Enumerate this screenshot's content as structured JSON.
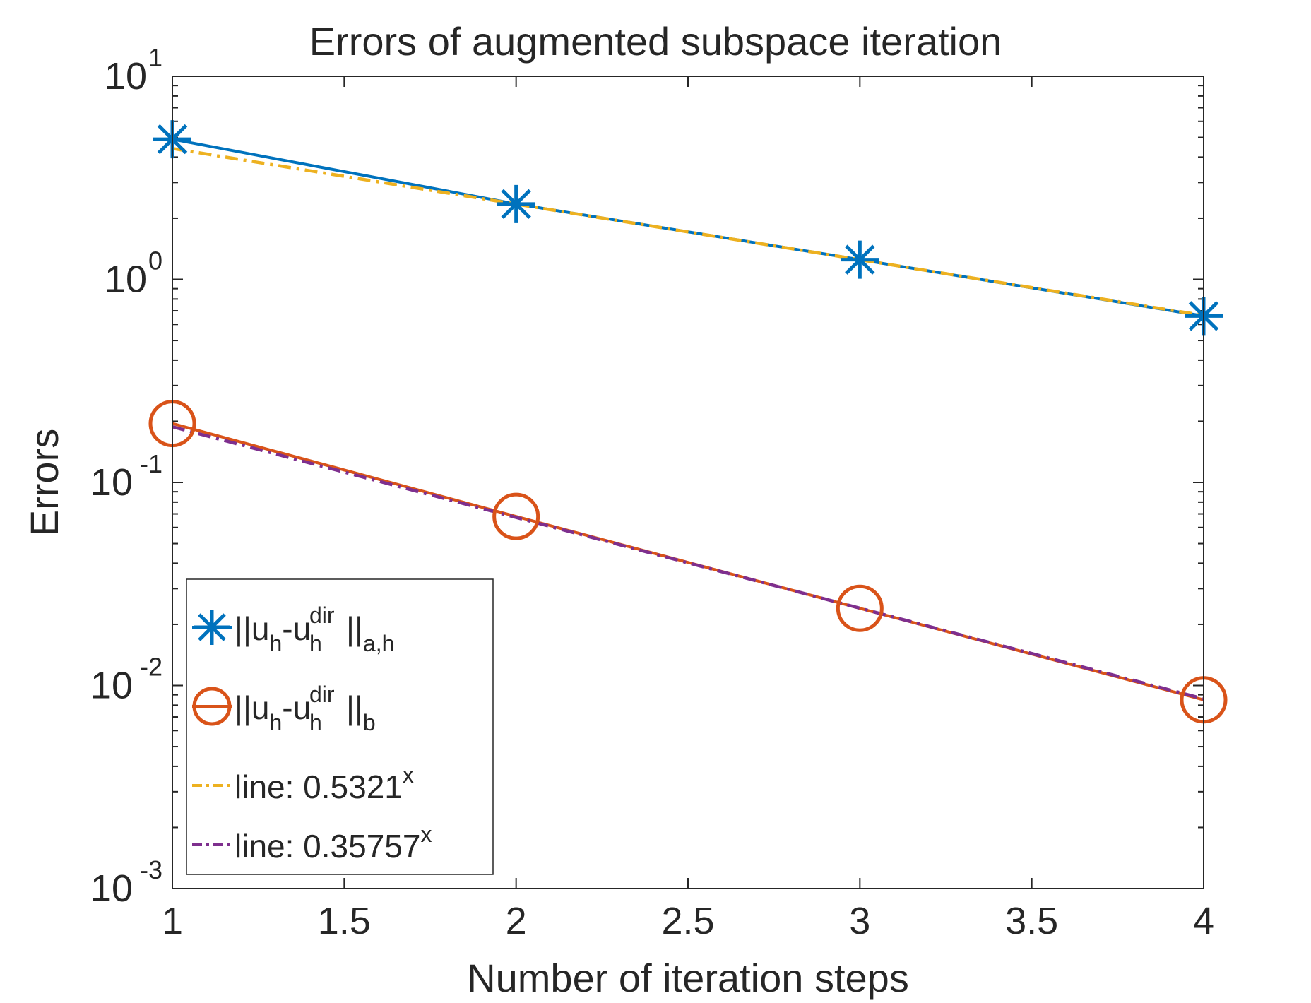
{
  "chart_data": {
    "type": "line",
    "title": "Errors of augmented subspace iteration",
    "xlabel": "Number of iteration steps",
    "ylabel": "Errors",
    "x_scale": "linear",
    "y_scale": "log",
    "xlim": [
      1,
      4
    ],
    "ylim": [
      0.001,
      10
    ],
    "grid": false,
    "legend_position": "bottom-left",
    "x_ticks": [
      1,
      1.5,
      2,
      2.5,
      3,
      3.5,
      4
    ],
    "x_tick_labels": [
      "1",
      "1.5",
      "2",
      "2.5",
      "3",
      "3.5",
      "4"
    ],
    "y_ticks": [
      {
        "value": 10,
        "base": "10",
        "exp": "1"
      },
      {
        "value": 1,
        "base": "10",
        "exp": "0"
      },
      {
        "value": 0.1,
        "base": "10",
        "exp": "-1"
      },
      {
        "value": 0.01,
        "base": "10",
        "exp": "-2"
      },
      {
        "value": 0.001,
        "base": "10",
        "exp": "-3"
      }
    ],
    "series": [
      {
        "key": "a_h",
        "legend": {
          "pre": "||u",
          "sub1": "h",
          "mid": "-u",
          "sup": "dir",
          "sub2": "h",
          "post": "||",
          "sub3": "a,h"
        },
        "color": "#0072BD",
        "line": "solid",
        "marker": "asterisk",
        "x": [
          1,
          2,
          3,
          4
        ],
        "y": [
          4.9,
          2.35,
          1.25,
          0.66
        ]
      },
      {
        "key": "b",
        "legend": {
          "pre": "||u",
          "sub1": "h",
          "mid": "-u",
          "sup": "dir",
          "sub2": "h",
          "post": "||",
          "sub3": "b"
        },
        "color": "#D95319",
        "line": "solid",
        "marker": "circle",
        "x": [
          1,
          2,
          3,
          4
        ],
        "y": [
          0.195,
          0.068,
          0.024,
          0.0085
        ]
      },
      {
        "key": "fit1",
        "legend": {
          "text": "line: 0.5321",
          "sup": "x"
        },
        "color": "#EDB120",
        "line": "dashdot",
        "marker": "none",
        "x": [
          1,
          2,
          3,
          4
        ],
        "y": [
          4.41,
          2.347,
          1.249,
          0.6644
        ]
      },
      {
        "key": "fit2",
        "legend": {
          "text": "line: 0.35757",
          "sup": "x"
        },
        "color": "#7E2F8E",
        "line": "dashdot",
        "marker": "none",
        "x": [
          1,
          2,
          3,
          4
        ],
        "y": [
          0.188,
          0.0672,
          0.02404,
          0.008597
        ]
      }
    ]
  }
}
